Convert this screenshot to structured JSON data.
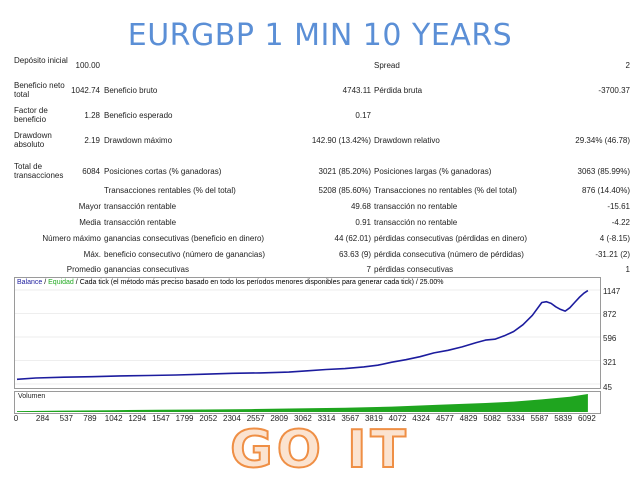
{
  "title": "EURGBP 1 MIN 10 YEARS",
  "watermark": "GO IT",
  "report": {
    "rows": [
      {
        "label": "Depósito inicial",
        "v1": "100.00",
        "l2": "",
        "v2": "",
        "l3": "Spread",
        "v3": "2"
      },
      {
        "label": "Beneficio neto total",
        "v1": "1042.74",
        "l2": "Beneficio bruto",
        "v2": "4743.11",
        "l3": "Pérdida bruta",
        "v3": "-3700.37"
      },
      {
        "label": "Factor de beneficio",
        "v1": "1.28",
        "l2": "Beneficio esperado",
        "v2": "0.17",
        "l3": "",
        "v3": ""
      },
      {
        "label": "Drawdown absoluto",
        "v1": "2.19",
        "l2": "Drawdown máximo",
        "v2": "142.90 (13.42%)",
        "l3": "Drawdown relativo",
        "v3": "29.34% (46.78)"
      },
      {
        "label": "Total de transacciones",
        "v1": "6084",
        "l2": "Posiciones cortas (% ganadoras)",
        "v2": "3021 (85.20%)",
        "l3": "Posiciones largas (% ganadoras)",
        "v3": "3063 (85.99%)"
      },
      {
        "label": "",
        "v1": "",
        "l2": "Transacciones rentables (% del total)",
        "v2": "5208 (85.60%)",
        "l3": "Transacciones no rentables (% del total)",
        "v3": "876 (14.40%)"
      },
      {
        "label": "Mayor",
        "v1": "",
        "l2": "transacción rentable",
        "v2": "49.68",
        "l3": "transacción no rentable",
        "v3": "-15.61"
      },
      {
        "label": "Media",
        "v1": "",
        "l2": "transacción rentable",
        "v2": "0.91",
        "l3": "transacción no rentable",
        "v3": "-4.22"
      },
      {
        "label": "Número máximo",
        "v1": "",
        "l2": "ganancias consecutivas (beneficio en dinero)",
        "v2": "44 (62.01)",
        "l3": "pérdidas consecutivas (pérdidas en dinero)",
        "v3": "4 (-8.15)"
      },
      {
        "label": "Máx.",
        "v1": "",
        "l2": "beneficio consecutivo (número de ganancias)",
        "v2": "63.63 (9)",
        "l3": "pérdida consecutiva (número de pérdidas)",
        "v3": "-31.21 (2)"
      },
      {
        "label": "Promedio",
        "v1": "",
        "l2": "ganancias consecutivas",
        "v2": "7",
        "l3": "pérdidas consecutivas",
        "v3": "1"
      }
    ]
  },
  "chart_data": {
    "type": "line",
    "legend": {
      "balance": "Balance",
      "sep1": " / ",
      "equity": "Equidad",
      "sep2": " / ",
      "mode": "Cada tick (el método más preciso basado en todo los períodos menores disponibles para generar cada tick)",
      "sep3": " / ",
      "quality": "25.00%"
    },
    "colors": {
      "balance": "#1c1c9e",
      "equity": "#22aa22",
      "volume": "#1fa51f"
    },
    "ylim": [
      45,
      1147
    ],
    "yticks": [
      "1147",
      "872",
      "596",
      "321",
      "45"
    ],
    "xlim": [
      0,
      6200
    ],
    "xticks": [
      "0",
      "284",
      "537",
      "789",
      "1042",
      "1294",
      "1547",
      "1799",
      "2052",
      "2304",
      "2557",
      "2809",
      "3062",
      "3314",
      "3567",
      "3819",
      "4072",
      "4324",
      "4577",
      "4829",
      "5082",
      "5334",
      "5587",
      "5839",
      "6092"
    ],
    "series": [
      {
        "name": "Balance",
        "x": [
          0,
          200,
          500,
          800,
          1100,
          1400,
          1700,
          2000,
          2300,
          2600,
          2900,
          3100,
          3300,
          3500,
          3700,
          3850,
          4000,
          4150,
          4300,
          4450,
          4600,
          4750,
          4900,
          5000,
          5100,
          5200,
          5300,
          5400,
          5500,
          5600,
          5650,
          5700,
          5750,
          5800,
          5850,
          5900,
          5950,
          6000,
          6050,
          6092
        ],
        "values": [
          100,
          115,
          125,
          130,
          140,
          145,
          150,
          160,
          170,
          175,
          185,
          200,
          215,
          225,
          245,
          265,
          300,
          330,
          365,
          410,
          440,
          480,
          530,
          560,
          570,
          610,
          660,
          740,
          850,
          1000,
          1010,
          990,
          950,
          920,
          900,
          940,
          1000,
          1060,
          1110,
          1140
        ]
      }
    ],
    "volume": {
      "label": "Volumen",
      "x": [
        0,
        500,
        1000,
        1500,
        2000,
        2500,
        3000,
        3500,
        4000,
        4500,
        5000,
        5300,
        5600,
        5900,
        6092
      ],
      "values": [
        0.05,
        0.08,
        0.1,
        0.12,
        0.14,
        0.16,
        0.2,
        0.24,
        0.3,
        0.4,
        0.5,
        0.58,
        0.7,
        0.85,
        1.0
      ]
    }
  }
}
